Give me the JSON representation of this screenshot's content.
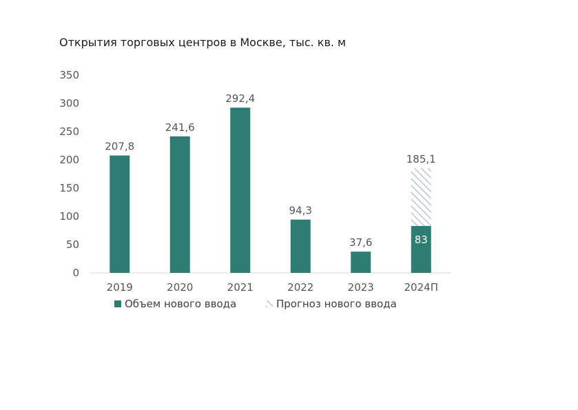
{
  "chart_data": {
    "type": "bar",
    "title": "Открытия торговых центров в Москве, тыс. кв. м",
    "categories": [
      "2019",
      "2020",
      "2021",
      "2022",
      "2023",
      "2024П"
    ],
    "series": [
      {
        "name": "Объем нового ввода",
        "values": [
          207.8,
          241.6,
          292.4,
          94.3,
          37.6,
          83
        ],
        "labels": [
          "207,8",
          "241,6",
          "292,4",
          "94,3",
          "37,6",
          "83"
        ],
        "color": "#2e7d72"
      },
      {
        "name": "Прогноз нового ввода",
        "values": [
          null,
          null,
          null,
          null,
          null,
          185.1
        ],
        "labels": [
          "",
          "",
          "",
          "",
          "",
          "185,1"
        ],
        "color": "#c9d6dc",
        "pattern": "diagonal-hatch"
      }
    ],
    "y_ticks": [
      "0",
      "50",
      "100",
      "150",
      "200",
      "250",
      "300",
      "350"
    ],
    "ylim": [
      0,
      350
    ],
    "grid": false,
    "legend_position": "bottom"
  }
}
